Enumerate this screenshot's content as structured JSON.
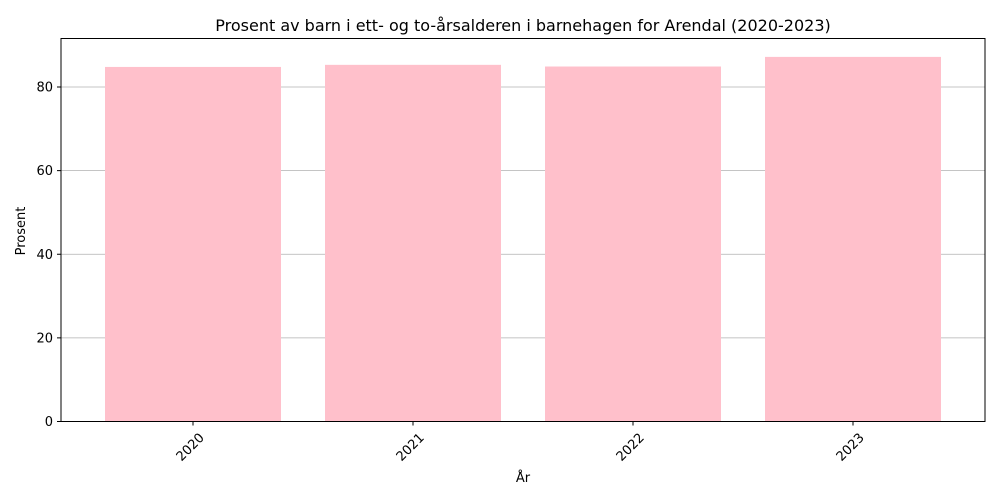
{
  "chart_data": {
    "type": "bar",
    "title": "Prosent av barn i ett- og to-årsalderen i barnehagen for Arendal (2020-2023)",
    "xlabel": "År",
    "ylabel": "Prosent",
    "categories": [
      "2020",
      "2021",
      "2022",
      "2023"
    ],
    "values": [
      84.8,
      85.3,
      84.9,
      87.2
    ],
    "ylim": [
      0,
      91.6
    ],
    "yticks": [
      0,
      20,
      40,
      60,
      80
    ],
    "grid": "y",
    "bar_color": "#ffc0cb",
    "grid_color": "#b0b0b0",
    "xtick_rotation": 45
  }
}
